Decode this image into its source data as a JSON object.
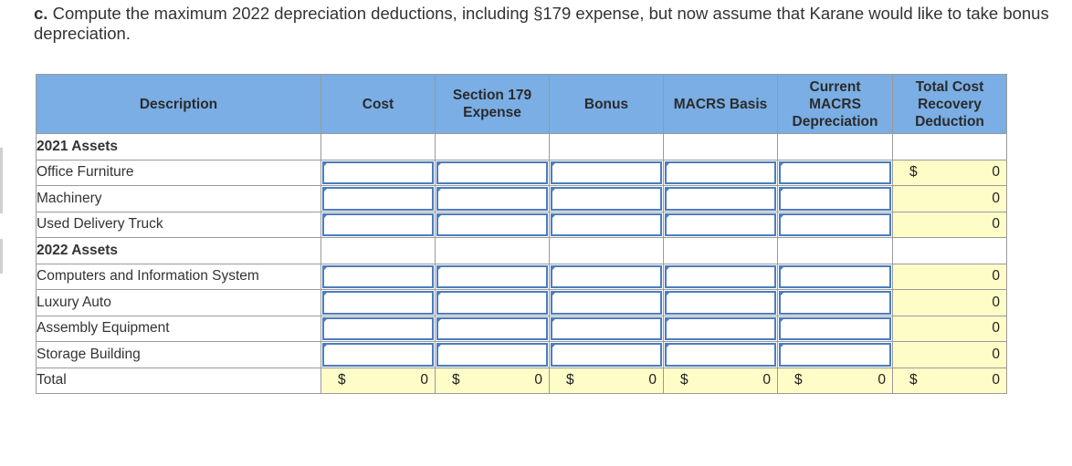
{
  "question": {
    "part_label": "c.",
    "text": "Compute the maximum 2022 depreciation deductions, including §179 expense, but now assume that Karane would like to take bonus depreciation."
  },
  "table": {
    "headers": {
      "description": "Description",
      "cost": "Cost",
      "section179": "Section 179 Expense",
      "bonus": "Bonus",
      "macrs_basis": "MACRS Basis",
      "current_macrs": "Current MACRS Depreciation",
      "total_cost_recovery": "Total Cost Recovery Deduction"
    },
    "section_2021": "2021 Assets",
    "rows_2021": [
      {
        "description": "Office Furniture",
        "total": "0",
        "currency": "$"
      },
      {
        "description": "Machinery",
        "total": "0"
      },
      {
        "description": "Used Delivery Truck",
        "total": "0"
      }
    ],
    "section_2022": "2022 Assets",
    "rows_2022": [
      {
        "description": "Computers and Information System",
        "total": "0"
      },
      {
        "description": "Luxury Auto",
        "total": "0"
      },
      {
        "description": "Assembly Equipment",
        "total": "0"
      },
      {
        "description": "Storage Building",
        "total": "0"
      }
    ],
    "total_row": {
      "label": "Total",
      "currency": "$",
      "cost": "0",
      "section179": "0",
      "bonus": "0",
      "macrs_basis": "0",
      "current_macrs": "0",
      "total_cost_recovery": "0"
    }
  },
  "colors": {
    "header_bg": "#7aaee4",
    "input_border": "#4a7dc0",
    "output_bg": "#fffdc7"
  }
}
